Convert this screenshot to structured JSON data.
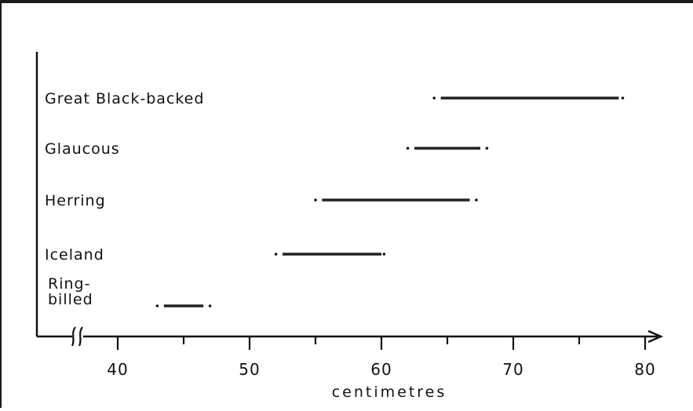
{
  "chart_data": {
    "type": "range",
    "title": "",
    "xlabel": "centimetres",
    "ylabel": "",
    "xlim": [
      35,
      81
    ],
    "x_ticks": [
      40,
      45,
      50,
      55,
      60,
      65,
      70,
      75,
      80
    ],
    "x_tick_labels": [
      "40",
      "50",
      "60",
      "70",
      "80"
    ],
    "axis_break": true,
    "categories": [
      [
        "Great Black-backed"
      ],
      [
        "Glaucous"
      ],
      [
        "Herring"
      ],
      [
        "Iceland"
      ],
      [
        "Ring-",
        "billed"
      ]
    ],
    "ranges": [
      {
        "typical": [
          64.5,
          78
        ],
        "extreme": [
          64,
          78.3
        ]
      },
      {
        "typical": [
          62.5,
          67.5
        ],
        "extreme": [
          62,
          68
        ]
      },
      {
        "typical": [
          55.5,
          66.7
        ],
        "extreme": [
          55,
          67.2
        ]
      },
      {
        "typical": [
          52.5,
          60
        ],
        "extreme": [
          52,
          60.2
        ]
      },
      {
        "typical": [
          43.5,
          46.5
        ],
        "extreme": [
          43,
          47
        ]
      }
    ]
  }
}
